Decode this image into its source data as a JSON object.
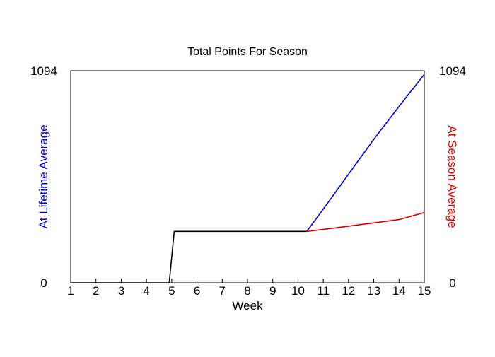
{
  "chart_data": {
    "type": "line",
    "title": "Total Points For Season",
    "xlabel": "Week",
    "ylabel_left": "At Lifetime Average",
    "ylabel_right": "At Season Average",
    "xlim": [
      1,
      15
    ],
    "ylim": [
      0,
      1094
    ],
    "x_ticks": [
      1,
      2,
      3,
      4,
      5,
      6,
      7,
      8,
      9,
      10,
      11,
      12,
      13,
      14,
      15
    ],
    "y_ticks_left": [
      0,
      1094
    ],
    "y_ticks_right": [
      0,
      1094
    ],
    "grid": false,
    "colors": {
      "left_axis_label": "#0000cc",
      "right_axis_label": "#dd0000",
      "actual": "#000000",
      "lifetime": "#0000cc",
      "season": "#dd0000"
    },
    "series": [
      {
        "key": "actual",
        "points": [
          [
            1,
            0
          ],
          [
            4.9,
            0
          ],
          [
            5.1,
            265
          ],
          [
            10.35,
            265
          ]
        ]
      },
      {
        "key": "lifetime",
        "points": [
          [
            10.35,
            265
          ],
          [
            11,
            380
          ],
          [
            12,
            560
          ],
          [
            13,
            740
          ],
          [
            14,
            910
          ],
          [
            15,
            1075
          ]
        ]
      },
      {
        "key": "season",
        "points": [
          [
            10.35,
            265
          ],
          [
            11,
            275
          ],
          [
            12,
            292
          ],
          [
            13,
            309
          ],
          [
            14,
            326
          ],
          [
            15,
            362
          ]
        ]
      }
    ]
  }
}
